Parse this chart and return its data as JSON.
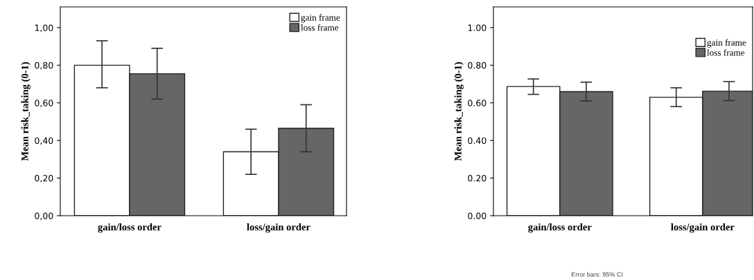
{
  "chart_data": [
    {
      "type": "bar",
      "ylabel": "Mean risk_taking (0-1)",
      "categories": [
        "gain/loss order",
        "loss/gain order"
      ],
      "ylim": [
        0,
        1.11
      ],
      "yticks": [
        {
          "value": 0,
          "label": "0,00"
        },
        {
          "value": 0.2,
          "label": "0,20"
        },
        {
          "value": 0.4,
          "label": "0,40"
        },
        {
          "value": 0.6,
          "label": "0,60"
        },
        {
          "value": 0.8,
          "label": "0,80"
        },
        {
          "value": 1.0,
          "label": "1,00"
        }
      ],
      "legend": "top right",
      "grid": false,
      "series": [
        {
          "name": "gain frame",
          "color": "#ffffff",
          "values": [
            0.8,
            0.34
          ],
          "errors": [
            [
              0.68,
              0.93
            ],
            [
              0.22,
              0.46
            ]
          ]
        },
        {
          "name": "loss frame",
          "color": "#666666",
          "values": [
            0.755,
            0.465
          ],
          "errors": [
            [
              0.62,
              0.89
            ],
            [
              0.34,
              0.59
            ]
          ]
        }
      ]
    },
    {
      "type": "bar",
      "ylabel": "Mean risk_taking (0-1)",
      "categories": [
        "gain/loss order",
        "loss/gain order"
      ],
      "ylim": [
        0,
        1.11
      ],
      "yticks": [
        {
          "value": 0,
          "label": "0.00"
        },
        {
          "value": 0.2,
          "label": "0.20"
        },
        {
          "value": 0.4,
          "label": "0.40"
        },
        {
          "value": 0.6,
          "label": "0.60"
        },
        {
          "value": 0.8,
          "label": "0.80"
        },
        {
          "value": 1.0,
          "label": "1.00"
        }
      ],
      "legend": "right",
      "grid": false,
      "annotations": [
        "Error bars: 95% CI"
      ],
      "series": [
        {
          "name": "gain frame",
          "color": "#ffffff",
          "values": [
            0.687,
            0.63
          ],
          "errors": [
            [
              0.645,
              0.727
            ],
            [
              0.58,
              0.68
            ]
          ]
        },
        {
          "name": "loss frame",
          "color": "#666666",
          "values": [
            0.66,
            0.662
          ],
          "errors": [
            [
              0.61,
              0.71
            ],
            [
              0.612,
              0.713
            ]
          ]
        }
      ]
    }
  ]
}
